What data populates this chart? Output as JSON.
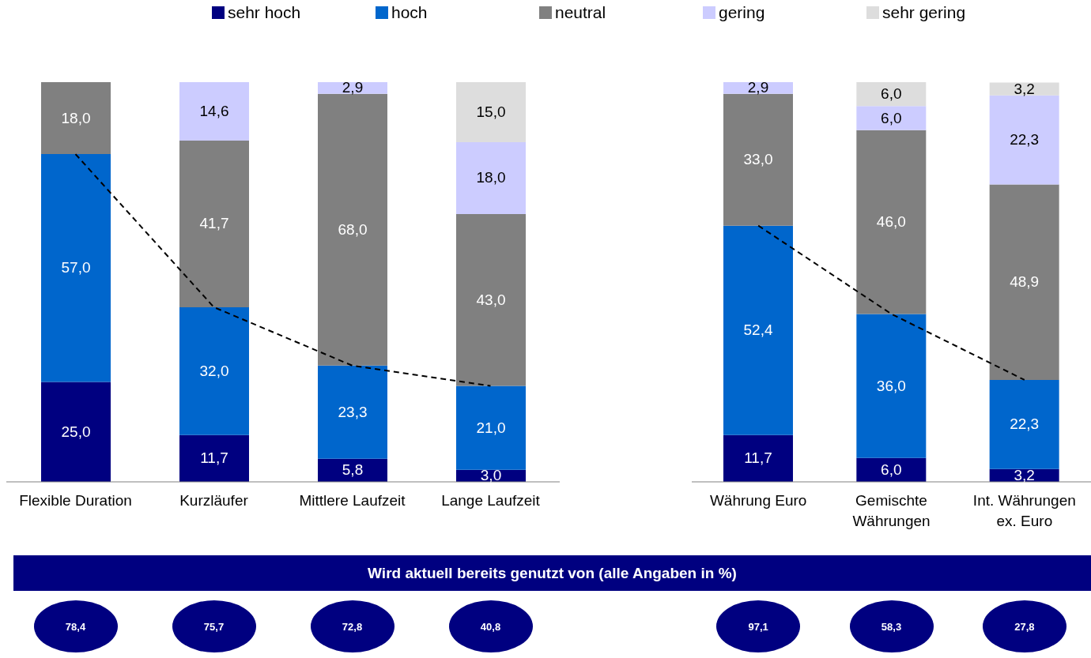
{
  "chart_data": [
    {
      "type": "bar",
      "stacked": true,
      "categories": [
        "Flexible Duration",
        "Kurzläufer",
        "Mittlere Laufzeit",
        "Lange Laufzeit"
      ],
      "series": [
        {
          "name": "sehr hoch",
          "color": "#000080",
          "values": [
            25.0,
            11.7,
            5.8,
            3.0
          ],
          "value_labels": [
            "25,0",
            "11,7",
            "5,8",
            "3,0"
          ]
        },
        {
          "name": "hoch",
          "color": "#0066cc",
          "values": [
            57.0,
            32.0,
            23.3,
            21.0
          ],
          "value_labels": [
            "57,0",
            "32,0",
            "23,3",
            "21,0"
          ]
        },
        {
          "name": "neutral",
          "color": "#808080",
          "values": [
            18.0,
            41.7,
            68.0,
            43.0
          ],
          "value_labels": [
            "18,0",
            "41,7",
            "68,0",
            "43,0"
          ]
        },
        {
          "name": "gering",
          "color": "#ccccff",
          "values": [
            null,
            14.6,
            2.9,
            18.0
          ],
          "value_labels": [
            null,
            "14,6",
            "2,9",
            "18,0"
          ]
        },
        {
          "name": "sehr gering",
          "color": "#dddddd",
          "values": [
            null,
            null,
            null,
            15.0
          ],
          "value_labels": [
            null,
            null,
            null,
            "15,0"
          ]
        },
        {
          "type": "line",
          "color": "#000000",
          "line_style": "dashed",
          "values": [
            82.0,
            43.7,
            29.1,
            24.0
          ]
        }
      ],
      "tick_labels": "x",
      "legend": "top",
      "annotations": [
        "Wird aktuell bereits genutzt von (alle Angaben in %)",
        "78,4",
        "75,7",
        "72,8",
        "40,8"
      ]
    },
    {
      "type": "bar",
      "stacked": true,
      "categories": [
        "Währung Euro",
        "Gemischte Währungen",
        "Int. Währungen ex. Euro"
      ],
      "series": [
        {
          "color": "#000080",
          "values": [
            11.7,
            6.0,
            3.2
          ],
          "value_labels": [
            "11,7",
            "6,0",
            "3,2"
          ]
        },
        {
          "color": "#0066cc",
          "values": [
            52.4,
            36.0,
            22.3
          ],
          "value_labels": [
            "52,4",
            "36,0",
            "22,3"
          ]
        },
        {
          "color": "#808080",
          "values": [
            33.0,
            46.0,
            48.9
          ],
          "value_labels": [
            "33,0",
            "46,0",
            "48,9"
          ]
        },
        {
          "color": "#ccccff",
          "values": [
            2.9,
            6.0,
            22.3
          ],
          "value_labels": [
            "2,9",
            "6,0",
            "22,3"
          ]
        },
        {
          "color": "#dddddd",
          "values": [
            null,
            6.0,
            3.2
          ],
          "value_labels": [
            null,
            "6,0",
            "3,2"
          ]
        },
        {
          "type": "line",
          "color": "#000000",
          "line_style": "dashed",
          "values": [
            64.1,
            42.0,
            25.5
          ]
        }
      ],
      "tick_labels": "x",
      "annotations": [
        "97,1",
        "58,3",
        "27,8"
      ]
    }
  ]
}
